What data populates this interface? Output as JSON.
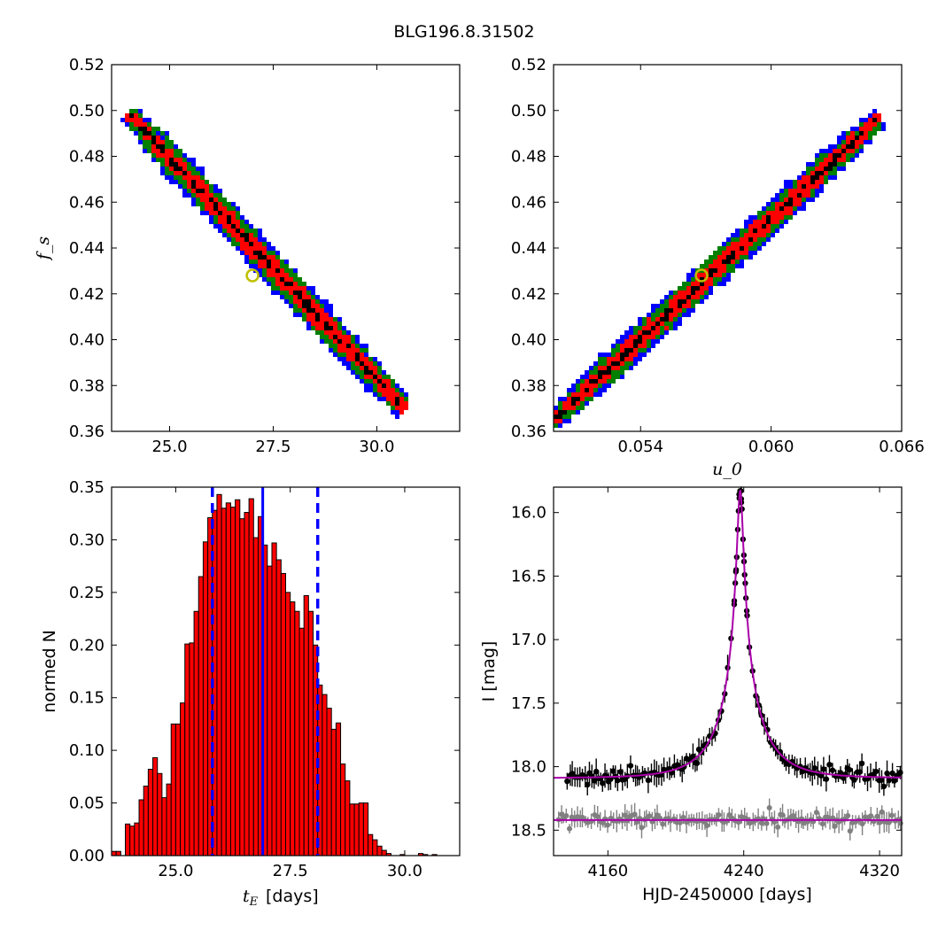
{
  "figure": {
    "title": "BLG196.8.31502"
  },
  "chart_data": [
    {
      "type": "heatmap",
      "panel": "top-left",
      "xlabel": "",
      "ylabel": "f_s",
      "xlim": [
        23.6,
        32.0
      ],
      "ylim": [
        0.36,
        0.52
      ],
      "xticks": [
        25.0,
        27.5,
        30.0
      ],
      "xtick_labels": [
        "25.0",
        "27.5",
        "30.0"
      ],
      "yticks": [
        0.36,
        0.38,
        0.4,
        0.42,
        0.44,
        0.46,
        0.48,
        0.5,
        0.52
      ],
      "ytick_labels": [
        "0.36",
        "0.38",
        "0.40",
        "0.42",
        "0.44",
        "0.46",
        "0.48",
        "0.50",
        "0.52"
      ],
      "band": {
        "x_start": 24.1,
        "y_start": 0.497,
        "x_end": 30.6,
        "y_end": 0.371
      },
      "confidence_colors": [
        "#0000ff",
        "#007f00",
        "#ff0000",
        "#000000"
      ],
      "best_fit_marker": {
        "x": 27.0,
        "y": 0.428,
        "color": "#bfbf00"
      }
    },
    {
      "type": "heatmap",
      "panel": "top-right",
      "xlabel": "u_0",
      "ylabel": "",
      "xlim": [
        0.05,
        0.066
      ],
      "ylim": [
        0.36,
        0.52
      ],
      "xticks": [
        0.054,
        0.06,
        0.066
      ],
      "xtick_labels": [
        "0.054",
        "0.060",
        "0.066"
      ],
      "yticks": [
        0.36,
        0.38,
        0.4,
        0.42,
        0.44,
        0.46,
        0.48,
        0.5,
        0.52
      ],
      "ytick_labels": [
        "0.36",
        "0.38",
        "0.40",
        "0.42",
        "0.44",
        "0.46",
        "0.48",
        "0.50",
        "0.52"
      ],
      "band": {
        "x_start": 0.0501,
        "y_start": 0.366,
        "x_end": 0.0648,
        "y_end": 0.495
      },
      "confidence_colors": [
        "#0000ff",
        "#007f00",
        "#ff0000",
        "#000000"
      ],
      "best_fit_marker": {
        "x": 0.0568,
        "y": 0.428,
        "color": "#bfbf00"
      }
    },
    {
      "type": "bar",
      "panel": "bottom-left",
      "xlabel": "t_E [days]",
      "xlabel_unit": "[days]",
      "ylabel": "normed N",
      "xlim": [
        23.6,
        31.2
      ],
      "ylim": [
        0.0,
        0.35
      ],
      "xticks": [
        25.0,
        27.5,
        30.0
      ],
      "xtick_labels": [
        "25.0",
        "27.5",
        "30.0"
      ],
      "yticks": [
        0.0,
        0.05,
        0.1,
        0.15,
        0.2,
        0.25,
        0.3,
        0.35
      ],
      "ytick_labels": [
        "0.00",
        "0.05",
        "0.10",
        "0.15",
        "0.20",
        "0.25",
        "0.30",
        "0.35"
      ],
      "bin_start": 23.6,
      "bin_width": 0.1,
      "values": [
        0.004,
        0.004,
        0.0,
        0.03,
        0.028,
        0.031,
        0.053,
        0.066,
        0.082,
        0.093,
        0.078,
        0.055,
        0.068,
        0.125,
        0.125,
        0.145,
        0.201,
        0.202,
        0.232,
        0.265,
        0.298,
        0.321,
        0.328,
        0.343,
        0.33,
        0.335,
        0.331,
        0.338,
        0.32,
        0.326,
        0.339,
        0.302,
        0.322,
        0.295,
        0.275,
        0.297,
        0.281,
        0.268,
        0.25,
        0.241,
        0.232,
        0.216,
        0.247,
        0.232,
        0.2,
        0.162,
        0.153,
        0.14,
        0.12,
        0.126,
        0.087,
        0.071,
        0.049,
        0.049,
        0.05,
        0.05,
        0.02,
        0.015,
        0.009,
        0.005,
        0.002,
        0.0,
        0.0,
        0.001,
        0.0,
        0.0,
        0.0,
        0.002,
        0.001,
        0.0,
        0.001,
        0.0,
        0.0,
        0.0,
        0.0,
        0.0
      ],
      "bar_color": "#ff0000",
      "best_line": 26.9,
      "interval_lines": [
        25.8,
        28.1
      ],
      "line_color": "#0000ff"
    },
    {
      "type": "scatter",
      "panel": "bottom-right",
      "xlabel": "HJD-2450000 [days]",
      "ylabel": "I [mag]",
      "xlim": [
        4128,
        4333
      ],
      "ylim": [
        18.7,
        15.8
      ],
      "xticks": [
        4160,
        4240,
        4320
      ],
      "xtick_labels": [
        "4160",
        "4240",
        "4320"
      ],
      "yticks": [
        16.0,
        16.5,
        17.0,
        17.5,
        18.0,
        18.5
      ],
      "ytick_labels": [
        "16.0",
        "16.5",
        "17.0",
        "17.5",
        "18.0",
        "18.5"
      ],
      "model": {
        "t0": 4237.9,
        "tE": 27.0,
        "u0": 0.0568,
        "fs": 0.428,
        "I_base": 18.09,
        "color": "#aa00aa"
      },
      "residual_baseline": 18.42,
      "data_color": "#000000",
      "residual_color": "#808080"
    }
  ]
}
